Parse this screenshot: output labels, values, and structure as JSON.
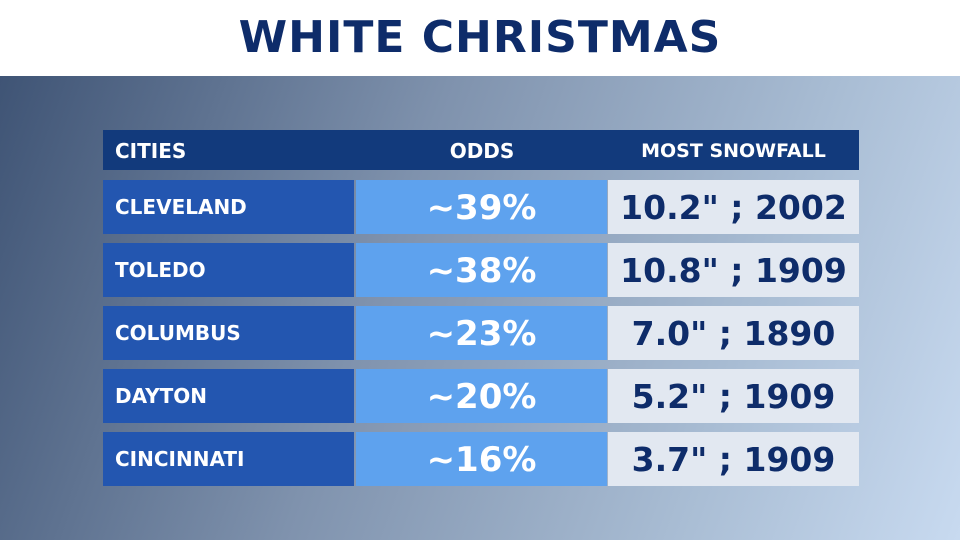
{
  "title": "WHITE CHRISTMAS",
  "headers": {
    "cities": "CITIES",
    "odds": "ODDS",
    "snowfall": "MOST SNOWFALL"
  },
  "rows": [
    {
      "city": "CLEVELAND",
      "odds": "~39%",
      "snowfall": "10.2\" ; 2002"
    },
    {
      "city": "TOLEDO",
      "odds": "~38%",
      "snowfall": "10.8\" ; 1909"
    },
    {
      "city": "COLUMBUS",
      "odds": "~23%",
      "snowfall": "7.0\" ; 1890"
    },
    {
      "city": "DAYTON",
      "odds": "~20%",
      "snowfall": "5.2\" ; 1909"
    },
    {
      "city": "CINCINNATI",
      "odds": "~16%",
      "snowfall": "3.7\" ; 1909"
    }
  ],
  "colors": {
    "title": "#0e2c6a",
    "header_bg": "#123a7c",
    "city_bg": "#2356b0",
    "odds_bg": "#5ea2ee",
    "snowfall_bg": "#e2e8f1"
  }
}
